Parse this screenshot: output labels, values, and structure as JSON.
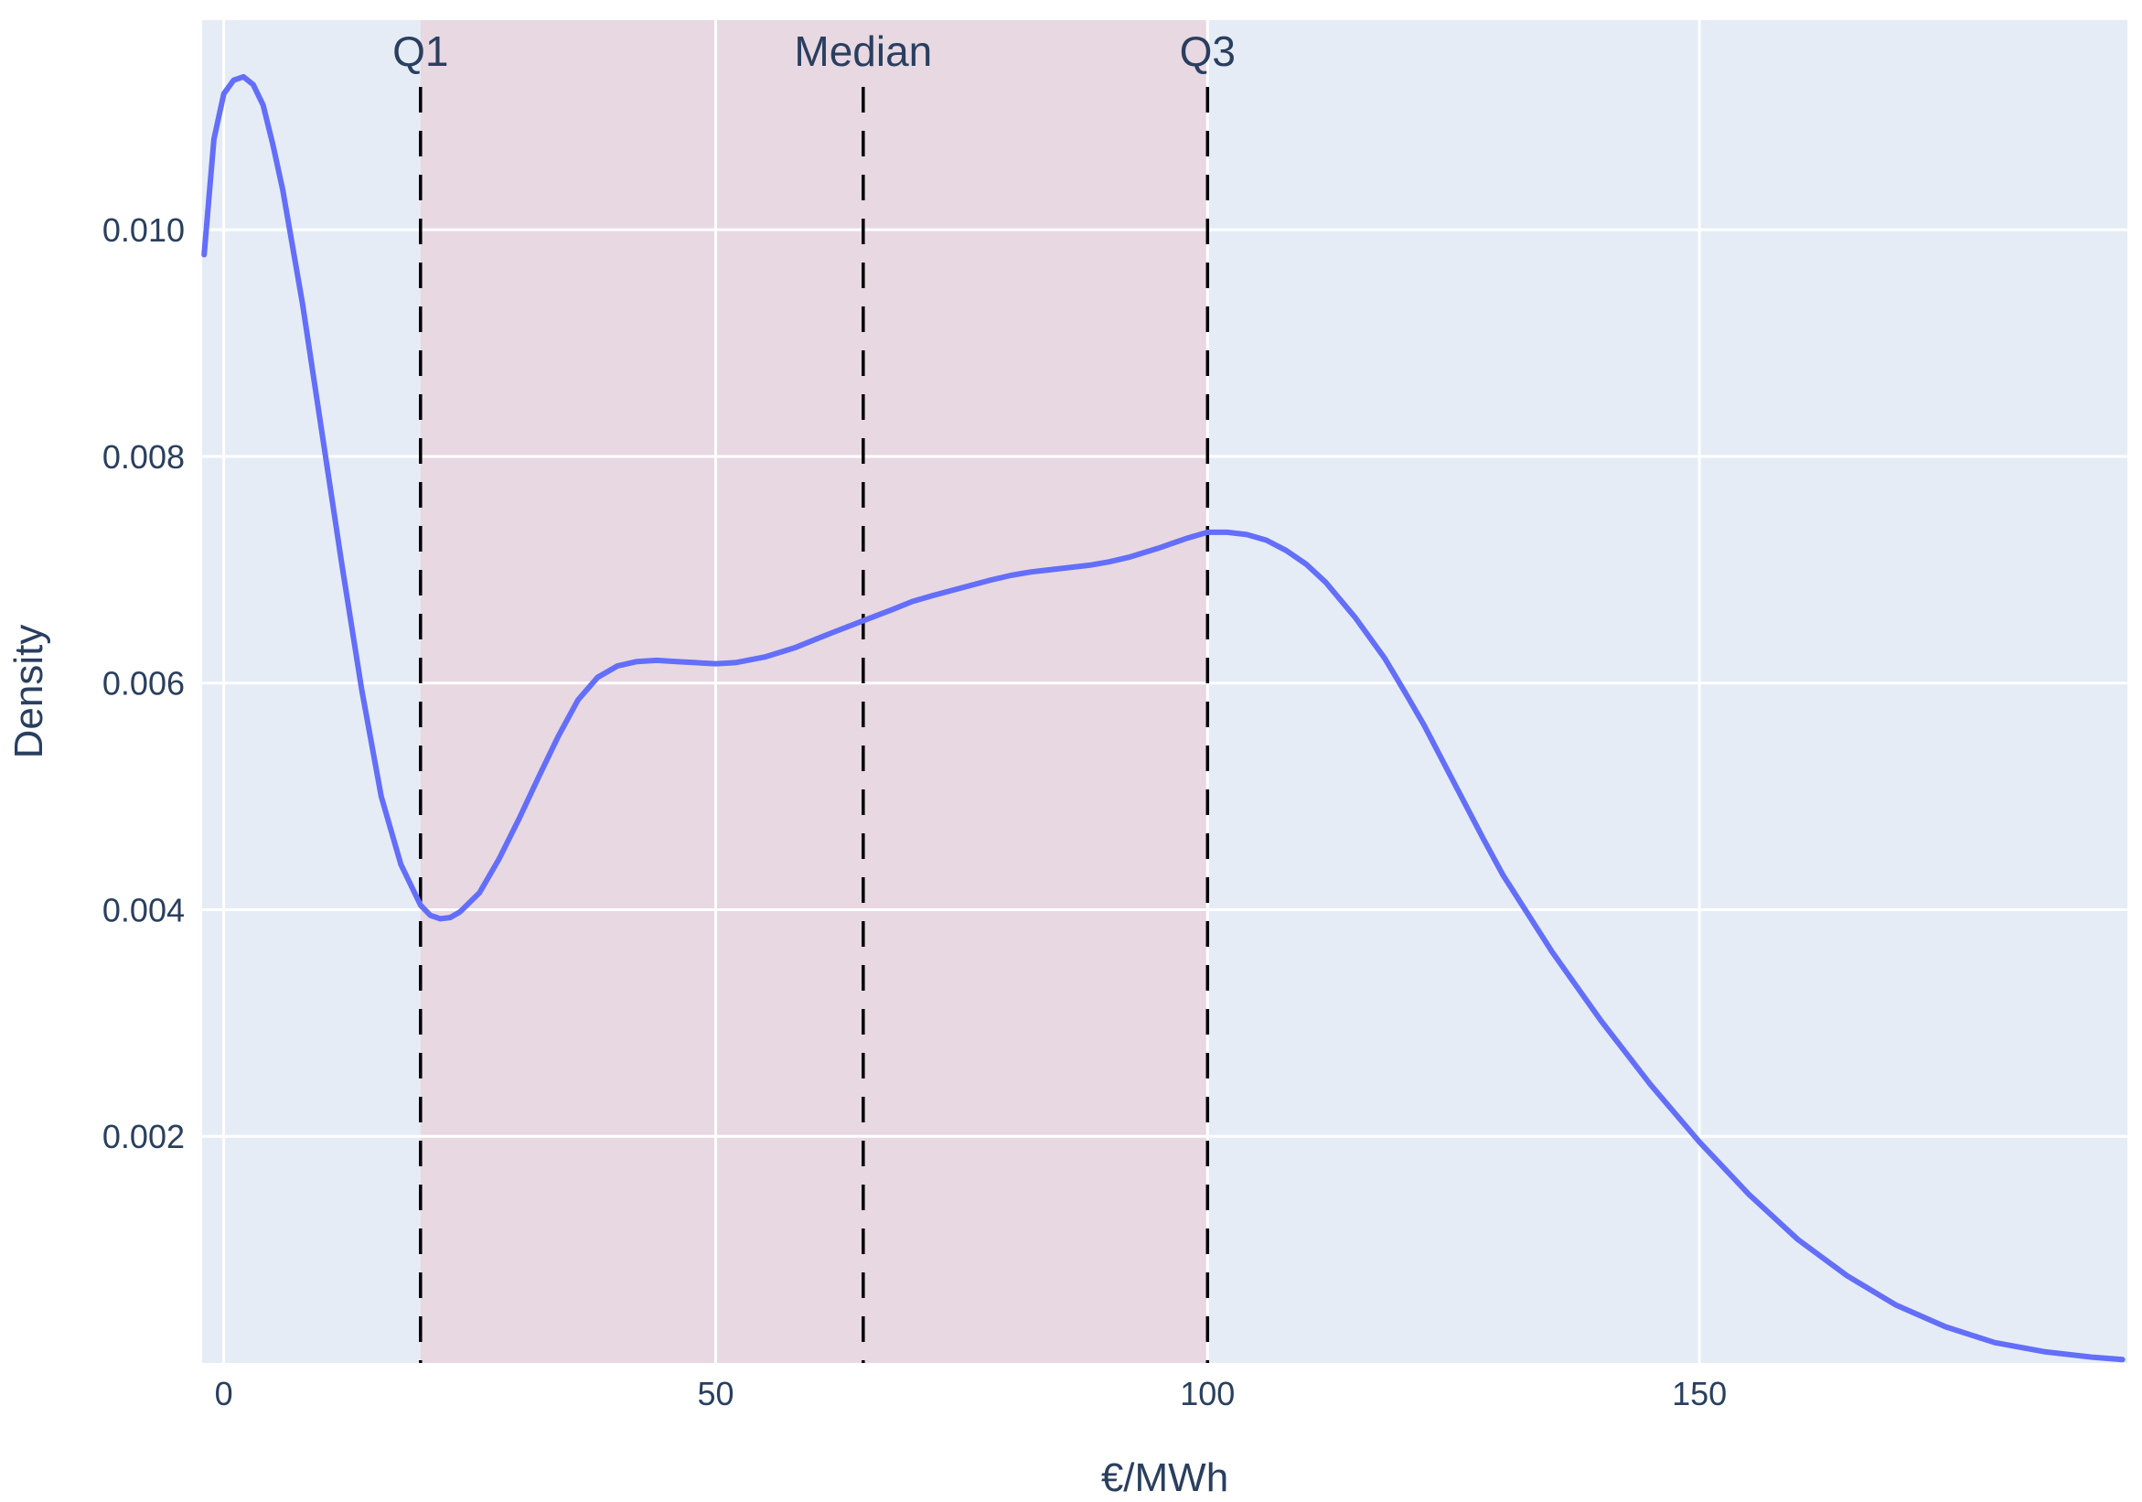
{
  "chart_data": {
    "type": "line",
    "title": "",
    "xlabel": "€/MWh",
    "ylabel": "Density",
    "xlim": [
      -2.2,
      193.5
    ],
    "ylim": [
      0,
      0.01185
    ],
    "x_ticks": [
      0,
      50,
      100,
      150
    ],
    "x_tick_labels": [
      "0",
      "50",
      "100",
      "150"
    ],
    "y_ticks": [
      0.002,
      0.004,
      0.006,
      0.008,
      0.01
    ],
    "y_tick_labels": [
      "0.002",
      "0.004",
      "0.006",
      "0.008",
      "0.010"
    ],
    "grid": true,
    "legend": "none",
    "colors": {
      "plot_background": "#e5ecf6",
      "iqr_band": "#e8d8e2",
      "line": "#636efa",
      "grid": "#ffffff",
      "reference_lines": "#000000",
      "text": "#2a3f5f"
    },
    "shaded_region": {
      "x_start": 20,
      "x_end": 100
    },
    "reference_lines": [
      {
        "label": "Q1",
        "x": 20
      },
      {
        "label": "Median",
        "x": 65
      },
      {
        "label": "Q3",
        "x": 100
      }
    ],
    "series": [
      {
        "x": [
          -2,
          -1,
          0,
          1,
          2,
          3,
          4,
          5,
          6,
          8,
          10,
          12,
          14,
          16,
          18,
          20,
          21,
          22,
          23,
          24,
          26,
          28,
          30,
          32,
          34,
          36,
          38,
          40,
          42,
          44,
          46,
          48,
          50,
          52,
          55,
          58,
          60,
          62,
          65,
          68,
          70,
          72,
          75,
          78,
          80,
          82,
          85,
          88,
          90,
          92,
          95,
          98,
          100,
          102,
          104,
          106,
          108,
          110,
          112,
          115,
          118,
          120,
          122,
          125,
          128,
          130,
          135,
          140,
          145,
          150,
          155,
          160,
          165,
          170,
          175,
          180,
          185,
          190,
          193
        ],
        "y": [
          0.00978,
          0.0108,
          0.0112,
          0.01132,
          0.01135,
          0.01128,
          0.0111,
          0.01075,
          0.01035,
          0.00935,
          0.0082,
          0.00705,
          0.00595,
          0.005,
          0.0044,
          0.00404,
          0.00395,
          0.00392,
          0.00393,
          0.00398,
          0.00415,
          0.00445,
          0.0048,
          0.00517,
          0.00553,
          0.00585,
          0.00605,
          0.00615,
          0.00619,
          0.0062,
          0.00619,
          0.00618,
          0.00617,
          0.00618,
          0.00623,
          0.00631,
          0.00638,
          0.00645,
          0.00655,
          0.00665,
          0.00672,
          0.00677,
          0.00684,
          0.00691,
          0.00695,
          0.00698,
          0.00701,
          0.00704,
          0.00707,
          0.00711,
          0.00719,
          0.00728,
          0.00733,
          0.00733,
          0.00731,
          0.00726,
          0.00717,
          0.00705,
          0.00689,
          0.00658,
          0.00622,
          0.00593,
          0.00563,
          0.00513,
          0.00463,
          0.00431,
          0.00363,
          0.00302,
          0.00246,
          0.00195,
          0.00149,
          0.00109,
          0.00077,
          0.00051,
          0.00032,
          0.00018,
          0.0001,
          5e-05,
          3e-05
        ]
      }
    ]
  }
}
